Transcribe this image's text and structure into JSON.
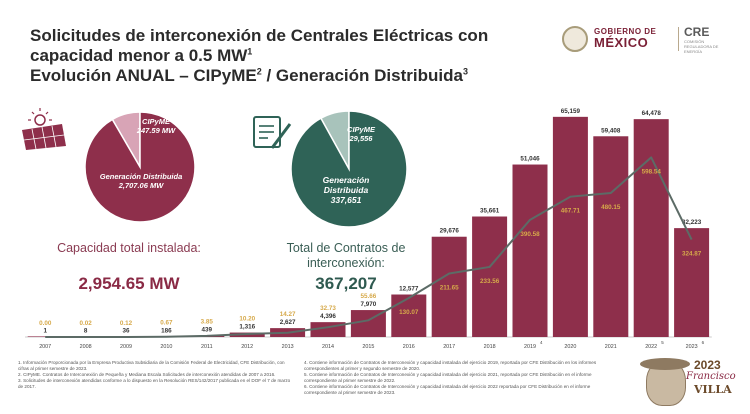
{
  "header": {
    "title_line1": "Solicitudes de interconexión de Centrales Eléctricas con",
    "title_line2": "capacidad menor a 0.5 MW",
    "title_line2_sup": "1",
    "title_line3_a": "Evolución ANUAL – CIPyME",
    "title_line3_sup1": "2",
    "title_line3_b": " / Generación Distribuida",
    "title_line3_sup2": "3"
  },
  "logos": {
    "gob_line1": "GOBIERNO DE",
    "gob_line2": "MÉXICO",
    "cre_text": "CRE",
    "cre_sub": "COMISIÓN REGULADORA DE ENERGÍA",
    "villa_year": "2023",
    "villa_name1": "Francisco",
    "villa_name2": "VILLA"
  },
  "pie_capacity": {
    "slices": [
      {
        "label": "CIPyME",
        "value_text": "247.59 MW",
        "value": 247.59,
        "color": "#d8a4b6"
      },
      {
        "label": "Generación Distribuida",
        "value_text": "2,707.06 MW",
        "value": 2707.06,
        "color": "#8e2f4b"
      }
    ],
    "caption": "Capacidad total instalada:",
    "total": "2,954.65 MW",
    "icon": "solar-panel-icon"
  },
  "pie_contracts": {
    "slices": [
      {
        "label": "CIPyME",
        "value_text": "29,556",
        "value": 29556,
        "color": "#a8c3bb"
      },
      {
        "label": "Generación Distribuida",
        "value_text": "337,651",
        "value": 337651,
        "color": "#2f6357"
      }
    ],
    "caption": "Total de Contratos de interconexión:",
    "total": "367,207",
    "icon": "contract-document-icon"
  },
  "chart_data": {
    "type": "bar",
    "categories": [
      "2007",
      "2008",
      "2009",
      "2010",
      "2011",
      "2012",
      "2013",
      "2014",
      "2015",
      "2016",
      "2017",
      "2018",
      "2019",
      "2020",
      "2021",
      "2022",
      "2023"
    ],
    "category_sups": [
      "",
      "",
      "",
      "",
      "",
      "",
      "",
      "",
      "",
      "",
      "",
      "",
      "4",
      "",
      "",
      "5",
      "6"
    ],
    "series": [
      {
        "name": "",
        "type": "bar",
        "values": [
          1,
          8,
          36,
          186,
          439,
          1316,
          2627,
          4396,
          7970,
          12577,
          29676,
          35661,
          51046,
          65159,
          59408,
          64478,
          32223
        ],
        "labels": [
          "1",
          "8",
          "36",
          "186",
          "439",
          "1,316",
          "2,627",
          "4,396",
          "7,970",
          "12,577",
          "29,676",
          "35,661",
          "51,046",
          "65,159",
          "59,408",
          "64,478",
          "32,223"
        ],
        "color": "#8e2f4b"
      },
      {
        "name": "",
        "type": "line",
        "values": [
          0.0,
          0.02,
          0.12,
          0.67,
          3.85,
          10.2,
          14.27,
          32.73,
          55.66,
          130.07,
          211.65,
          233.56,
          390.58,
          467.71,
          480.15,
          598.54,
          324.87
        ],
        "labels": [
          "0.00",
          "0.02",
          "0.12",
          "0.67",
          "3.85",
          "10.20",
          "14.27",
          "32.73",
          "55.66",
          "130.07",
          "211.65",
          "233.56",
          "390.58",
          "467.71",
          "480.15",
          "598.54",
          "324.87"
        ],
        "color": "#5c6b66",
        "label_color": "#d6a94a"
      }
    ],
    "bar_ylim": [
      0,
      66000
    ],
    "line_ylim": [
      0,
      560
    ],
    "title": "",
    "xlabel": "",
    "ylabel": ""
  },
  "footnotes": {
    "left": [
      "1. Información Proporcionada por la Empresa Productiva Subsidiaria de la Comisión Federal de Electricidad, CFE Distribución, con cifras al primer semestre de 2023.",
      "2. CIPyME. Contratos de Interconexión de Pequeña y Mediana Escala Solicitudes de interconexión atendidas de 2007 a 2016.",
      "3. Solicitudes de interconexión atendidas conforme a lo dispuesto en la Resolución RES/142/2017 publicada en el DOF el 7 de marzo de 2017."
    ],
    "right": [
      "4. Contiene información de Contratos de Interconexión y capacidad instalada del ejercicio 2019, reportada por CFE Distribución en los informes correspondientes al primer y segundo semestre de 2020.",
      "5. Contiene información de Contratos de Interconexión y capacidad instalada del ejercicio 2021, reportada por CFE Distribución en el informe correspondiente al primer semestre de 2022.",
      "6. Contiene información de Contratos de Interconexión y capacidad instalada del ejercicio 2022 reportada por CFE Distribución en el informe correspondiente al primer semestre de 2023."
    ]
  }
}
